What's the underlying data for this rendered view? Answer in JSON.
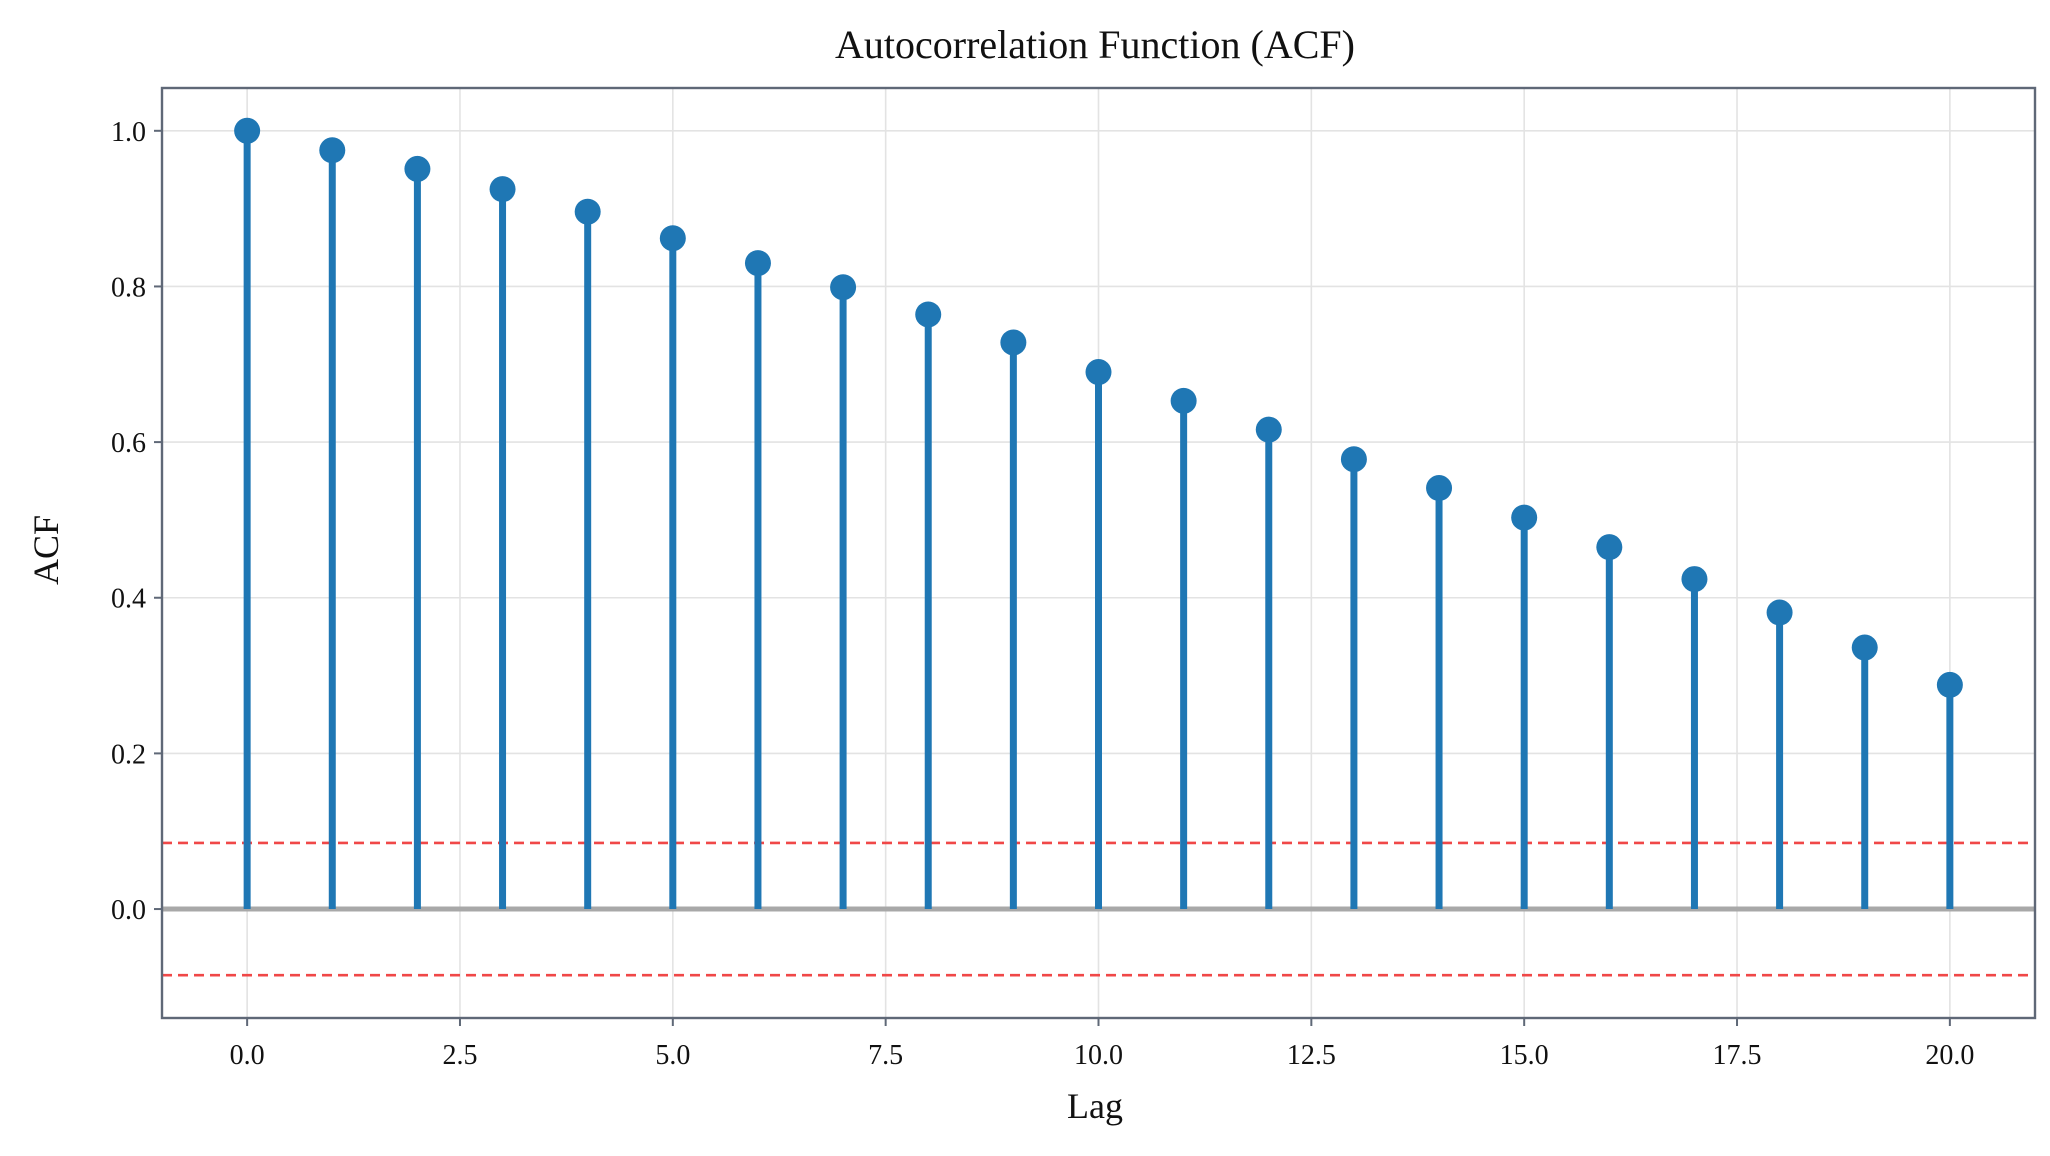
{
  "chart_data": {
    "type": "stem",
    "title": "Autocorrelation Function (ACF)",
    "xlabel": "Lag",
    "ylabel": "ACF",
    "xlim": [
      -1,
      21
    ],
    "ylim": [
      -0.14,
      1.055
    ],
    "x_ticks": [
      0,
      2.5,
      5,
      7.5,
      10,
      12.5,
      15,
      17.5,
      20
    ],
    "x_tick_labels": [
      "0.0",
      "2.5",
      "5.0",
      "7.5",
      "10.0",
      "12.5",
      "15.0",
      "17.5",
      "20.0"
    ],
    "y_ticks": [
      0,
      0.2,
      0.4,
      0.6,
      0.8,
      1.0
    ],
    "y_tick_labels": [
      "0.0",
      "0.2",
      "0.4",
      "0.6",
      "0.8",
      "1.0"
    ],
    "grid": true,
    "series": [
      {
        "x": [
          0,
          1,
          2,
          3,
          4,
          5,
          6,
          7,
          8,
          9,
          10,
          11,
          12,
          13,
          14,
          15,
          16,
          17,
          18,
          19,
          20
        ],
        "values": [
          1.0,
          0.975,
          0.951,
          0.925,
          0.896,
          0.862,
          0.83,
          0.799,
          0.764,
          0.728,
          0.69,
          0.653,
          0.616,
          0.578,
          0.541,
          0.503,
          0.465,
          0.424,
          0.381,
          0.336,
          0.288
        ]
      }
    ],
    "confidence_bounds": [
      0.085,
      -0.085
    ],
    "colors": {
      "stem": "#1f77b4",
      "confidence": "#f04848",
      "zero_line": "#a8a8a8"
    }
  }
}
